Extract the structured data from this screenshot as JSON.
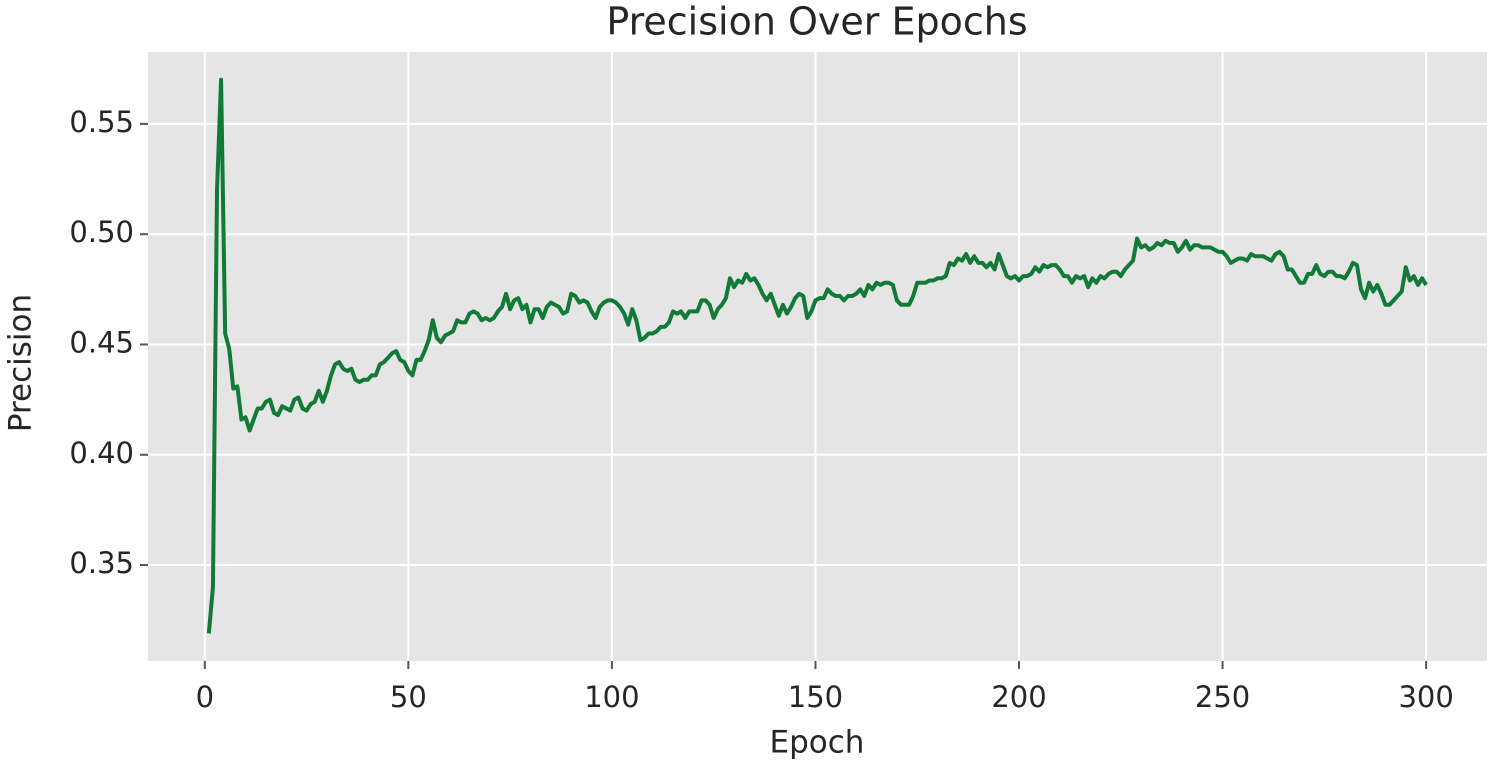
{
  "chart_data": {
    "type": "line",
    "title": "Precision Over Epochs",
    "x_label": "Epoch",
    "y_label": "Precision",
    "color": "#117a37",
    "grid": true,
    "xlim": [
      -13.95,
      314.95
    ],
    "xticks": [
      0,
      50,
      100,
      150,
      200,
      250,
      300
    ],
    "ylim": [
      0.3065,
      0.5826
    ],
    "yticks": [
      0.35,
      {
        "value": 0.4,
        "label": "0.40"
      },
      0.45,
      {
        "value": 0.5,
        "label": "0.50"
      },
      0.55
    ],
    "x": [
      1,
      2,
      3,
      4,
      5,
      6,
      7,
      8,
      9,
      10,
      11,
      12,
      13,
      14,
      15,
      16,
      17,
      18,
      19,
      20,
      21,
      22,
      23,
      24,
      25,
      26,
      27,
      28,
      29,
      30,
      31,
      32,
      33,
      34,
      35,
      36,
      37,
      38,
      39,
      40,
      41,
      42,
      43,
      44,
      45,
      46,
      47,
      48,
      49,
      50,
      51,
      52,
      53,
      54,
      55,
      56,
      57,
      58,
      59,
      60,
      61,
      62,
      63,
      64,
      65,
      66,
      67,
      68,
      69,
      70,
      71,
      72,
      73,
      74,
      75,
      76,
      77,
      78,
      79,
      80,
      81,
      82,
      83,
      84,
      85,
      86,
      87,
      88,
      89,
      90,
      91,
      92,
      93,
      94,
      95,
      96,
      97,
      98,
      99,
      100,
      101,
      102,
      103,
      104,
      105,
      106,
      107,
      108,
      109,
      110,
      111,
      112,
      113,
      114,
      115,
      116,
      117,
      118,
      119,
      120,
      121,
      122,
      123,
      124,
      125,
      126,
      127,
      128,
      129,
      130,
      131,
      132,
      133,
      134,
      135,
      136,
      137,
      138,
      139,
      140,
      141,
      142,
      143,
      144,
      145,
      146,
      147,
      148,
      149,
      150,
      151,
      152,
      153,
      154,
      155,
      156,
      157,
      158,
      159,
      160,
      161,
      162,
      163,
      164,
      165,
      166,
      167,
      168,
      169,
      170,
      171,
      172,
      173,
      174,
      175,
      176,
      177,
      178,
      179,
      180,
      181,
      182,
      183,
      184,
      185,
      186,
      187,
      188,
      189,
      190,
      191,
      192,
      193,
      194,
      195,
      196,
      197,
      198,
      199,
      200,
      201,
      202,
      203,
      204,
      205,
      206,
      207,
      208,
      209,
      210,
      211,
      212,
      213,
      214,
      215,
      216,
      217,
      218,
      219,
      220,
      221,
      222,
      223,
      224,
      225,
      226,
      227,
      228,
      229,
      230,
      231,
      232,
      233,
      234,
      235,
      236,
      237,
      238,
      239,
      240,
      241,
      242,
      243,
      244,
      245,
      246,
      247,
      248,
      249,
      250,
      251,
      252,
      253,
      254,
      255,
      256,
      257,
      258,
      259,
      260,
      261,
      262,
      263,
      264,
      265,
      266,
      267,
      268,
      269,
      270,
      271,
      272,
      273,
      274,
      275,
      276,
      277,
      278,
      279,
      280,
      281,
      282,
      283,
      284,
      285,
      286,
      287,
      288,
      289,
      290,
      291,
      292,
      293,
      294,
      295,
      296,
      297,
      298,
      299,
      300
    ],
    "values": [
      0.319,
      0.34,
      0.52,
      0.57,
      0.455,
      0.448,
      0.43,
      0.431,
      0.416,
      0.417,
      0.411,
      0.416,
      0.421,
      0.421,
      0.424,
      0.425,
      0.419,
      0.418,
      0.422,
      0.421,
      0.42,
      0.425,
      0.426,
      0.421,
      0.42,
      0.423,
      0.424,
      0.429,
      0.424,
      0.429,
      0.436,
      0.441,
      0.442,
      0.439,
      0.438,
      0.439,
      0.434,
      0.433,
      0.434,
      0.434,
      0.436,
      0.436,
      0.441,
      0.442,
      0.444,
      0.446,
      0.447,
      0.443,
      0.442,
      0.438,
      0.436,
      0.443,
      0.443,
      0.447,
      0.452,
      0.461,
      0.453,
      0.451,
      0.454,
      0.455,
      0.456,
      0.461,
      0.46,
      0.46,
      0.464,
      0.465,
      0.464,
      0.461,
      0.462,
      0.461,
      0.462,
      0.465,
      0.467,
      0.473,
      0.466,
      0.47,
      0.471,
      0.466,
      0.468,
      0.46,
      0.466,
      0.466,
      0.462,
      0.467,
      0.469,
      0.468,
      0.467,
      0.464,
      0.465,
      0.473,
      0.472,
      0.469,
      0.47,
      0.469,
      0.465,
      0.462,
      0.467,
      0.469,
      0.47,
      0.47,
      0.469,
      0.467,
      0.464,
      0.459,
      0.466,
      0.461,
      0.452,
      0.453,
      0.455,
      0.455,
      0.456,
      0.458,
      0.458,
      0.46,
      0.465,
      0.464,
      0.465,
      0.462,
      0.465,
      0.465,
      0.465,
      0.47,
      0.47,
      0.468,
      0.462,
      0.466,
      0.468,
      0.471,
      0.48,
      0.476,
      0.479,
      0.478,
      0.482,
      0.479,
      0.48,
      0.477,
      0.473,
      0.47,
      0.473,
      0.468,
      0.463,
      0.468,
      0.464,
      0.467,
      0.471,
      0.473,
      0.472,
      0.462,
      0.465,
      0.47,
      0.471,
      0.471,
      0.475,
      0.473,
      0.472,
      0.472,
      0.47,
      0.472,
      0.472,
      0.473,
      0.475,
      0.472,
      0.477,
      0.475,
      0.478,
      0.477,
      0.478,
      0.478,
      0.477,
      0.47,
      0.468,
      0.468,
      0.468,
      0.472,
      0.478,
      0.478,
      0.478,
      0.479,
      0.479,
      0.48,
      0.48,
      0.481,
      0.487,
      0.486,
      0.489,
      0.488,
      0.491,
      0.487,
      0.49,
      0.487,
      0.487,
      0.485,
      0.487,
      0.484,
      0.491,
      0.486,
      0.481,
      0.48,
      0.481,
      0.479,
      0.481,
      0.481,
      0.482,
      0.485,
      0.483,
      0.486,
      0.485,
      0.486,
      0.486,
      0.484,
      0.481,
      0.481,
      0.478,
      0.481,
      0.48,
      0.481,
      0.476,
      0.48,
      0.478,
      0.481,
      0.48,
      0.482,
      0.483,
      0.483,
      0.481,
      0.484,
      0.486,
      0.488,
      0.498,
      0.494,
      0.495,
      0.493,
      0.494,
      0.496,
      0.495,
      0.497,
      0.496,
      0.496,
      0.492,
      0.494,
      0.497,
      0.493,
      0.495,
      0.495,
      0.494,
      0.494,
      0.494,
      0.493,
      0.492,
      0.492,
      0.49,
      0.487,
      0.488,
      0.489,
      0.489,
      0.488,
      0.491,
      0.49,
      0.49,
      0.49,
      0.489,
      0.488,
      0.491,
      0.492,
      0.49,
      0.484,
      0.484,
      0.481,
      0.478,
      0.478,
      0.482,
      0.482,
      0.486,
      0.482,
      0.481,
      0.483,
      0.483,
      0.481,
      0.481,
      0.48,
      0.483,
      0.487,
      0.486,
      0.475,
      0.471,
      0.478,
      0.474,
      0.477,
      0.473,
      0.468,
      0.468,
      0.47,
      0.472,
      0.474,
      0.485,
      0.479,
      0.481,
      0.477,
      0.48,
      0.477
    ]
  }
}
